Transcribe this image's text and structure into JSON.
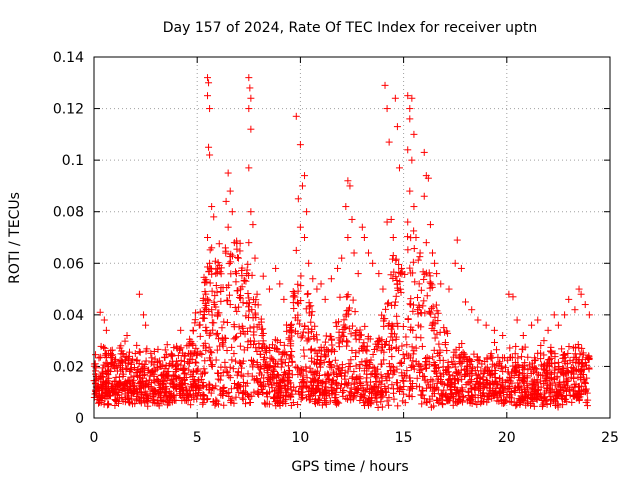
{
  "chart_data": {
    "type": "scatter",
    "title": "Day 157 of 2024, Rate Of TEC Index for receiver uptn",
    "xlabel": "GPS time / hours",
    "ylabel": "ROTI / TECUs",
    "xlim": [
      0,
      25
    ],
    "ylim": [
      0,
      0.14
    ],
    "xticks": [
      0,
      5,
      10,
      15,
      20,
      25
    ],
    "yticks": [
      0,
      0.02,
      0.04,
      0.06,
      0.08,
      0.1,
      0.12,
      0.14
    ],
    "x_tick_labels": [
      "0",
      "5",
      "10",
      "15",
      "20",
      "25"
    ],
    "y_tick_labels": [
      "0",
      "0.02",
      "0.04",
      "0.06",
      "0.08",
      "0.1",
      "0.12",
      "0.14"
    ],
    "grid": true,
    "marker": "plus",
    "color": "#ff0000",
    "series": [
      {
        "points": [
          [
            0.3,
            0.041
          ],
          [
            0.5,
            0.038
          ],
          [
            0.6,
            0.034
          ],
          [
            0.8,
            0.025
          ],
          [
            1.0,
            0.022
          ],
          [
            1.3,
            0.028
          ],
          [
            1.6,
            0.032
          ],
          [
            2.0,
            0.025
          ],
          [
            2.2,
            0.048
          ],
          [
            2.4,
            0.04
          ],
          [
            2.5,
            0.036
          ],
          [
            2.8,
            0.022
          ],
          [
            3.2,
            0.02
          ],
          [
            3.6,
            0.018
          ],
          [
            4.0,
            0.022
          ],
          [
            4.2,
            0.034
          ],
          [
            4.5,
            0.028
          ],
          [
            4.8,
            0.034
          ],
          [
            5.1,
            0.036
          ],
          [
            5.3,
            0.028
          ],
          [
            5.5,
            0.132
          ],
          [
            5.55,
            0.13
          ],
          [
            5.5,
            0.125
          ],
          [
            5.6,
            0.12
          ],
          [
            5.55,
            0.105
          ],
          [
            5.6,
            0.102
          ],
          [
            5.7,
            0.082
          ],
          [
            5.8,
            0.078
          ],
          [
            5.5,
            0.07
          ],
          [
            5.7,
            0.066
          ],
          [
            5.6,
            0.06
          ],
          [
            5.9,
            0.056
          ],
          [
            5.5,
            0.046
          ],
          [
            5.7,
            0.042
          ],
          [
            6.0,
            0.04
          ],
          [
            6.2,
            0.035
          ],
          [
            6.5,
            0.095
          ],
          [
            6.6,
            0.088
          ],
          [
            6.4,
            0.084
          ],
          [
            6.7,
            0.08
          ],
          [
            6.5,
            0.074
          ],
          [
            6.8,
            0.068
          ],
          [
            7.0,
            0.062
          ],
          [
            6.9,
            0.056
          ],
          [
            7.1,
            0.05
          ],
          [
            6.6,
            0.044
          ],
          [
            7.5,
            0.132
          ],
          [
            7.55,
            0.128
          ],
          [
            7.6,
            0.124
          ],
          [
            7.5,
            0.12
          ],
          [
            7.6,
            0.112
          ],
          [
            7.5,
            0.097
          ],
          [
            7.6,
            0.08
          ],
          [
            7.7,
            0.075
          ],
          [
            7.5,
            0.068
          ],
          [
            7.8,
            0.062
          ],
          [
            7.4,
            0.056
          ],
          [
            7.9,
            0.048
          ],
          [
            8.2,
            0.055
          ],
          [
            8.5,
            0.05
          ],
          [
            8.8,
            0.058
          ],
          [
            9.0,
            0.052
          ],
          [
            9.2,
            0.046
          ],
          [
            9.8,
            0.117
          ],
          [
            10.0,
            0.106
          ],
          [
            10.2,
            0.094
          ],
          [
            10.1,
            0.09
          ],
          [
            9.9,
            0.085
          ],
          [
            10.3,
            0.08
          ],
          [
            10.0,
            0.074
          ],
          [
            10.2,
            0.07
          ],
          [
            9.8,
            0.065
          ],
          [
            10.4,
            0.06
          ],
          [
            10.6,
            0.054
          ],
          [
            10.8,
            0.05
          ],
          [
            11.0,
            0.052
          ],
          [
            11.2,
            0.046
          ],
          [
            11.5,
            0.054
          ],
          [
            11.8,
            0.058
          ],
          [
            12.0,
            0.062
          ],
          [
            12.3,
            0.092
          ],
          [
            12.4,
            0.09
          ],
          [
            12.2,
            0.082
          ],
          [
            12.5,
            0.077
          ],
          [
            12.3,
            0.07
          ],
          [
            12.6,
            0.064
          ],
          [
            12.8,
            0.056
          ],
          [
            13.0,
            0.074
          ],
          [
            13.1,
            0.07
          ],
          [
            13.3,
            0.064
          ],
          [
            13.5,
            0.06
          ],
          [
            13.8,
            0.056
          ],
          [
            14.0,
            0.05
          ],
          [
            14.1,
            0.129
          ],
          [
            14.2,
            0.12
          ],
          [
            14.3,
            0.107
          ],
          [
            14.2,
            0.076
          ],
          [
            14.4,
            0.077
          ],
          [
            14.5,
            0.07
          ],
          [
            14.6,
            0.124
          ],
          [
            14.7,
            0.113
          ],
          [
            14.8,
            0.097
          ],
          [
            14.5,
            0.063
          ],
          [
            14.9,
            0.058
          ],
          [
            14.7,
            0.052
          ],
          [
            15.2,
            0.125
          ],
          [
            15.3,
            0.12
          ],
          [
            15.4,
            0.124
          ],
          [
            15.3,
            0.116
          ],
          [
            15.5,
            0.11
          ],
          [
            15.2,
            0.104
          ],
          [
            15.4,
            0.1
          ],
          [
            15.3,
            0.088
          ],
          [
            15.5,
            0.082
          ],
          [
            15.2,
            0.076
          ],
          [
            15.6,
            0.07
          ],
          [
            15.8,
            0.064
          ],
          [
            16.0,
            0.103
          ],
          [
            16.1,
            0.094
          ],
          [
            16.2,
            0.093
          ],
          [
            16.0,
            0.086
          ],
          [
            16.3,
            0.075
          ],
          [
            16.1,
            0.068
          ],
          [
            16.4,
            0.064
          ],
          [
            16.5,
            0.06
          ],
          [
            16.6,
            0.056
          ],
          [
            16.8,
            0.052
          ],
          [
            17.2,
            0.05
          ],
          [
            17.5,
            0.06
          ],
          [
            17.6,
            0.069
          ],
          [
            17.8,
            0.058
          ],
          [
            18.0,
            0.045
          ],
          [
            18.3,
            0.042
          ],
          [
            18.6,
            0.038
          ],
          [
            19.0,
            0.036
          ],
          [
            19.4,
            0.034
          ],
          [
            19.8,
            0.032
          ],
          [
            20.1,
            0.048
          ],
          [
            20.3,
            0.047
          ],
          [
            20.5,
            0.038
          ],
          [
            20.8,
            0.032
          ],
          [
            21.2,
            0.036
          ],
          [
            21.5,
            0.038
          ],
          [
            21.8,
            0.03
          ],
          [
            22.0,
            0.034
          ],
          [
            22.3,
            0.04
          ],
          [
            22.5,
            0.036
          ],
          [
            22.8,
            0.04
          ],
          [
            23.0,
            0.046
          ],
          [
            23.3,
            0.042
          ],
          [
            23.5,
            0.05
          ],
          [
            23.6,
            0.048
          ],
          [
            23.8,
            0.044
          ],
          [
            24.0,
            0.04
          ]
        ]
      }
    ]
  }
}
